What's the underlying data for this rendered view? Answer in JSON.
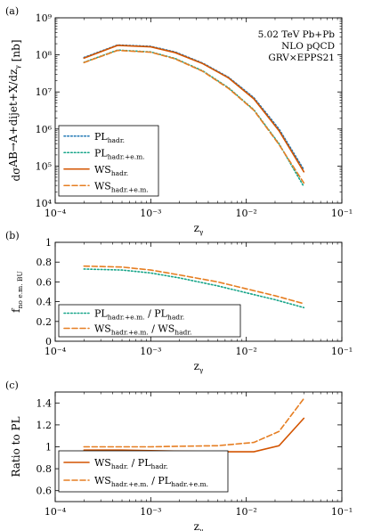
{
  "figure": {
    "colors": {
      "pl": "#1f77b4",
      "pl_em": "#17a589",
      "ws": "#d35400",
      "ws_em": "#e67e22"
    }
  },
  "chart_data": [
    {
      "panel": "(a)",
      "type": "line",
      "xlabel": "zγ",
      "ylabel": "dσ^{AB→A+dijet+X}/dzγ [nb]",
      "xscale": "log",
      "yscale": "log",
      "xlim": [
        0.0001,
        0.1
      ],
      "ylim": [
        10000,
        1000000000
      ],
      "x_ticks": [
        "10⁻⁴",
        "10⁻³",
        "10⁻²",
        "10⁻¹"
      ],
      "y_ticks": [
        "10⁴",
        "10⁵",
        "10⁶",
        "10⁷",
        "10⁸",
        "10⁹"
      ],
      "annotation": [
        "5.02 TeV Pb+Pb",
        "NLO pQCD",
        "GRV×EPPS21"
      ],
      "legend_position": "bottom-left",
      "x": [
        0.0002,
        0.00045,
        0.001,
        0.0018,
        0.0035,
        0.0065,
        0.012,
        0.022,
        0.04
      ],
      "series": [
        {
          "name": "PL",
          "sub": "hadr.",
          "style": "dotted",
          "color_key": "pl",
          "values": [
            85000000,
            185000000,
            170000000,
            120000000,
            60000000,
            25000000,
            7000000,
            1000000,
            80000
          ]
        },
        {
          "name": "PL",
          "sub": "hadr.+e.m.",
          "style": "dotted",
          "color_key": "pl_em",
          "values": [
            63000000,
            135000000,
            120000000,
            80000000,
            37000000,
            13000000,
            3300000,
            400000,
            28000
          ]
        },
        {
          "name": "WS",
          "sub": "hadr.",
          "style": "solid",
          "color_key": "ws",
          "values": [
            82000000,
            180000000,
            165000000,
            115000000,
            58000000,
            24000000,
            6500000,
            900000,
            70000
          ]
        },
        {
          "name": "WS",
          "sub": "hadr.+e.m.",
          "style": "dashed",
          "color_key": "ws_em",
          "values": [
            62000000,
            132000000,
            118000000,
            78000000,
            36000000,
            12500000,
            3200000,
            380000,
            35000
          ]
        }
      ]
    },
    {
      "panel": "(b)",
      "type": "line",
      "xlabel": "zγ",
      "ylabel": "f_no e.m. BU",
      "xscale": "log",
      "yscale": "linear",
      "xlim": [
        0.0001,
        0.1
      ],
      "ylim": [
        0,
        1
      ],
      "x_ticks": [
        "10⁻⁴",
        "10⁻³",
        "10⁻²",
        "10⁻¹"
      ],
      "y_ticks": [
        "0",
        "0.2",
        "0.4",
        "0.6",
        "0.8",
        "1"
      ],
      "legend_position": "bottom-left",
      "x": [
        0.0002,
        0.0005,
        0.001,
        0.002,
        0.005,
        0.01,
        0.02,
        0.04
      ],
      "series": [
        {
          "name": "PL",
          "sub": "hadr.+e.m.",
          "den_name": "PL",
          "den_sub": "hadr.",
          "style": "dotted",
          "color_key": "pl_em",
          "values": [
            0.73,
            0.72,
            0.69,
            0.64,
            0.56,
            0.49,
            0.42,
            0.34
          ]
        },
        {
          "name": "WS",
          "sub": "hadr.+e.m.",
          "den_name": "WS",
          "den_sub": "hadr.",
          "style": "dashed",
          "color_key": "ws_em",
          "values": [
            0.76,
            0.75,
            0.72,
            0.67,
            0.6,
            0.53,
            0.46,
            0.38
          ]
        }
      ]
    },
    {
      "panel": "(c)",
      "type": "line",
      "xlabel": "zγ",
      "ylabel": "Ratio to PL",
      "xscale": "log",
      "yscale": "linear",
      "xlim": [
        0.0001,
        0.1
      ],
      "ylim": [
        0.5,
        1.5
      ],
      "x_ticks": [
        "10⁻⁴",
        "10⁻³",
        "10⁻²",
        "10⁻¹"
      ],
      "y_ticks": [
        "0.6",
        "0.8",
        "1",
        "1.2",
        "1.4"
      ],
      "legend_position": "bottom-left",
      "x": [
        0.0002,
        0.0005,
        0.001,
        0.002,
        0.005,
        0.012,
        0.022,
        0.04
      ],
      "series": [
        {
          "name": "WS",
          "sub": "hadr.",
          "den_name": "PL",
          "den_sub": "hadr.",
          "style": "solid",
          "color_key": "ws",
          "values": [
            0.97,
            0.97,
            0.965,
            0.96,
            0.955,
            0.955,
            1.01,
            1.26
          ]
        },
        {
          "name": "WS",
          "sub": "hadr.+e.m.",
          "den_name": "PL",
          "den_sub": "hadr.+e.m.",
          "style": "dashed",
          "color_key": "ws_em",
          "values": [
            1.0,
            1.0,
            1.0,
            1.005,
            1.01,
            1.04,
            1.14,
            1.44
          ]
        }
      ]
    }
  ]
}
